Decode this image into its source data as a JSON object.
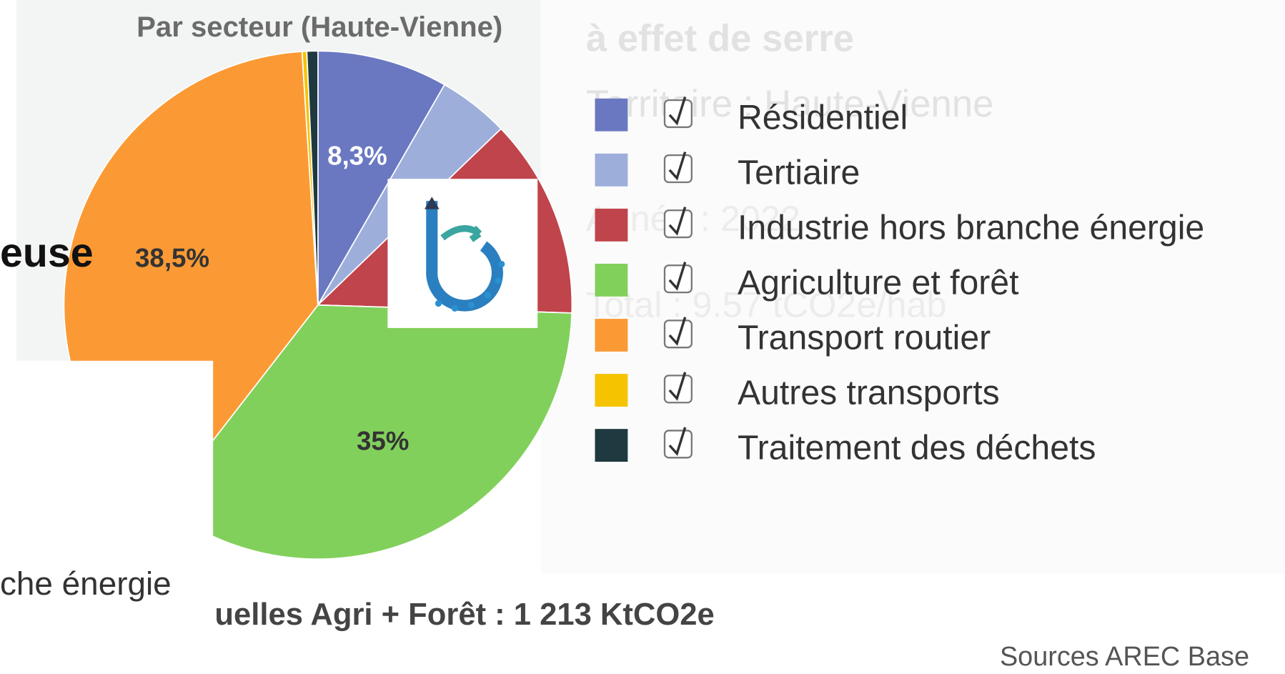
{
  "chart_data": {
    "type": "pie",
    "title": "Par secteur (Haute-Vienne)",
    "categories": [
      "Résidentiel",
      "Tertiaire",
      "Industrie hors branche énergie",
      "Agriculture et forêt",
      "Transport routier",
      "Autres transports",
      "Traitement des déchets"
    ],
    "values": [
      8.3,
      4.5,
      12.7,
      35,
      38.5,
      0.3,
      0.7
    ],
    "value_labels": [
      "8,3%",
      null,
      null,
      "35%",
      "38,5%",
      null,
      null
    ],
    "colors": [
      "#6a78c2",
      "#9eaedb",
      "#c0444b",
      "#82d05c",
      "#fb9a35",
      "#f6c300",
      "#1e3a40"
    ],
    "legend": "right"
  },
  "background_texts": [
    "à effet de serre",
    "Territoire : Haute-Vienne",
    "Année : 2022",
    "Total : 9.57 tCO2e/hab"
  ],
  "overlay_texts": {
    "left_word": "euse",
    "left_caption": "che énergie",
    "total": "uelles Agri + Forêt : 1 213 KtCO2e",
    "sources": "Sources AREC  Base"
  }
}
